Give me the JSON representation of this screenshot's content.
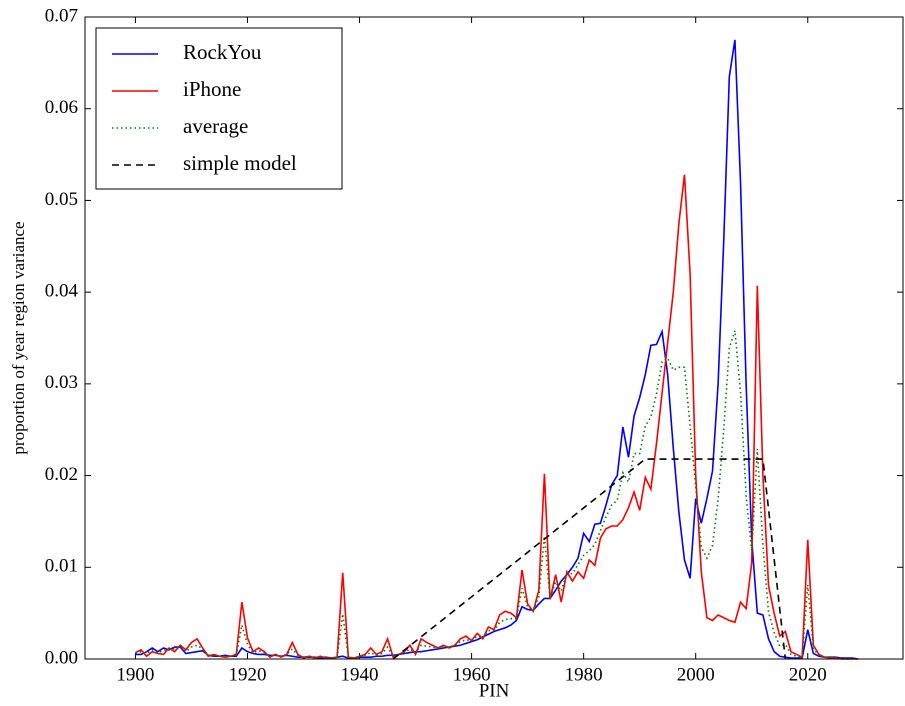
{
  "chart_data": {
    "type": "line",
    "xlabel": "PIN",
    "ylabel": "proportion of year region variance",
    "xlim": [
      1891,
      2037
    ],
    "ylim": [
      0,
      0.07
    ],
    "xticks": [
      1900,
      1920,
      1940,
      1960,
      1980,
      2000,
      2020
    ],
    "yticks": [
      {
        "value": 0,
        "label": "0.00"
      },
      {
        "value": 0.01,
        "label": "0.01"
      },
      {
        "value": 0.02,
        "label": "0.02"
      },
      {
        "value": 0.03,
        "label": "0.03"
      },
      {
        "value": 0.04,
        "label": "0.04"
      },
      {
        "value": 0.05,
        "label": "0.05"
      },
      {
        "value": 0.06,
        "label": "0.06"
      },
      {
        "value": 0.07,
        "label": "0.07"
      }
    ],
    "grid": false,
    "legend": "upper-left",
    "x": [
      1900,
      1901,
      1902,
      1903,
      1904,
      1905,
      1906,
      1907,
      1908,
      1909,
      1910,
      1911,
      1912,
      1913,
      1914,
      1915,
      1916,
      1917,
      1918,
      1919,
      1920,
      1921,
      1922,
      1923,
      1924,
      1925,
      1926,
      1927,
      1928,
      1929,
      1930,
      1931,
      1932,
      1933,
      1934,
      1935,
      1936,
      1937,
      1938,
      1939,
      1940,
      1941,
      1942,
      1943,
      1944,
      1945,
      1946,
      1947,
      1948,
      1949,
      1950,
      1951,
      1952,
      1953,
      1954,
      1955,
      1956,
      1957,
      1958,
      1959,
      1960,
      1961,
      1962,
      1963,
      1964,
      1965,
      1966,
      1967,
      1968,
      1969,
      1970,
      1971,
      1972,
      1973,
      1974,
      1975,
      1976,
      1977,
      1978,
      1979,
      1980,
      1981,
      1982,
      1983,
      1984,
      1985,
      1986,
      1987,
      1988,
      1989,
      1990,
      1991,
      1992,
      1993,
      1994,
      1995,
      1996,
      1997,
      1998,
      1999,
      2000,
      2001,
      2002,
      2003,
      2004,
      2005,
      2006,
      2007,
      2008,
      2009,
      2010,
      2011,
      2012,
      2013,
      2014,
      2015,
      2016,
      2017,
      2018,
      2019,
      2020,
      2021,
      2022,
      2023,
      2024,
      2025,
      2026,
      2027,
      2028,
      2029
    ],
    "series": [
      {
        "name": "RockYou",
        "color": "#0000ff",
        "style": "solid",
        "values": [
          0.0005,
          0.0005,
          0.0008,
          0.0012,
          0.0008,
          0.0012,
          0.001,
          0.0013,
          0.0013,
          0.0006,
          0.0007,
          0.0008,
          0.0009,
          0.0004,
          0.0003,
          0.0003,
          0.0004,
          0.0003,
          0.0003,
          0.0012,
          0.0008,
          0.0006,
          0.0005,
          0.0005,
          0.0004,
          0.0004,
          0.0003,
          0.0004,
          0.0003,
          0.0002,
          0.0002,
          0.0002,
          0.0002,
          0.0001,
          0.0002,
          0.0001,
          0.0002,
          0.0003,
          0.0001,
          0.0001,
          0.0002,
          0.0002,
          0.0002,
          0.0003,
          0.0003,
          0.0004,
          0.0004,
          0.0005,
          0.0006,
          0.0007,
          0.0008,
          0.0008,
          0.0009,
          0.001,
          0.0011,
          0.0012,
          0.0013,
          0.0014,
          0.0015,
          0.0017,
          0.0019,
          0.0021,
          0.0024,
          0.0027,
          0.003,
          0.0032,
          0.0034,
          0.0037,
          0.0042,
          0.0057,
          0.0054,
          0.0053,
          0.006,
          0.0066,
          0.0066,
          0.0075,
          0.0085,
          0.0092,
          0.01,
          0.011,
          0.0137,
          0.0128,
          0.0147,
          0.0148,
          0.0168,
          0.019,
          0.02,
          0.0253,
          0.022,
          0.0265,
          0.0285,
          0.031,
          0.0342,
          0.0343,
          0.0357,
          0.031,
          0.023,
          0.016,
          0.0108,
          0.0088,
          0.0175,
          0.0148,
          0.0175,
          0.0205,
          0.03,
          0.0455,
          0.0635,
          0.0675,
          0.052,
          0.03,
          0.013,
          0.005,
          0.0048,
          0.0022,
          0.0008,
          0.0003,
          0.0002,
          0.0001,
          0.0001,
          0.0001,
          0.0032,
          0.0006,
          0.0003,
          0.0002,
          0.0002,
          0.0002,
          0.0001,
          0.0001,
          0.0001,
          0
        ]
      },
      {
        "name": "iPhone",
        "color": "#ff0000",
        "style": "solid",
        "values": [
          0.0007,
          0.001,
          0.0003,
          0.0008,
          0.0006,
          0.0005,
          0.0012,
          0.0008,
          0.0015,
          0.001,
          0.0018,
          0.0022,
          0.0012,
          0.0003,
          0.0005,
          0.0003,
          0.0002,
          0.0003,
          0.0005,
          0.0062,
          0.0023,
          0.0008,
          0.0012,
          0.0008,
          0.0002,
          0.0005,
          0.0002,
          0.0005,
          0.0018,
          0.0005,
          0.0001,
          0.0003,
          0.0001,
          0.0003,
          0.0001,
          0.0001,
          0.0002,
          0.0094,
          0.0002,
          0.0001,
          0.0003,
          0.0005,
          0.0012,
          0.0005,
          0.0008,
          0.0022,
          0.0002,
          0.0005,
          0.0008,
          0.0015,
          0.0005,
          0.0022,
          0.0018,
          0.0015,
          0.0012,
          0.0015,
          0.0012,
          0.0015,
          0.0022,
          0.0025,
          0.002,
          0.0028,
          0.0022,
          0.0035,
          0.0032,
          0.0048,
          0.0052,
          0.005,
          0.0045,
          0.0097,
          0.006,
          0.0052,
          0.0075,
          0.0202,
          0.0065,
          0.0092,
          0.0062,
          0.0095,
          0.0085,
          0.0095,
          0.0088,
          0.0108,
          0.0102,
          0.0132,
          0.0142,
          0.0145,
          0.0145,
          0.0152,
          0.0165,
          0.0182,
          0.0162,
          0.0198,
          0.0185,
          0.0235,
          0.029,
          0.0345,
          0.04,
          0.0475,
          0.0528,
          0.042,
          0.02,
          0.0095,
          0.0045,
          0.0042,
          0.0048,
          0.0045,
          0.0042,
          0.004,
          0.0062,
          0.0055,
          0.0105,
          0.0407,
          0.02,
          0.008,
          0.005,
          0.0025,
          0.003,
          0.0008,
          0.0005,
          0.0002,
          0.013,
          0.0015,
          0.0005,
          0.0002,
          0.0001,
          0.0001,
          0,
          0,
          0,
          0
        ]
      },
      {
        "name": "average",
        "color": "#008000",
        "style": "dotted",
        "values": [
          0.0006,
          0.0008,
          0.0006,
          0.001,
          0.0007,
          0.0009,
          0.0011,
          0.0011,
          0.0014,
          0.0008,
          0.0013,
          0.0015,
          0.0011,
          0.0004,
          0.0004,
          0.0003,
          0.0003,
          0.0003,
          0.0004,
          0.0037,
          0.0016,
          0.0007,
          0.0009,
          0.0007,
          0.0003,
          0.0005,
          0.0003,
          0.0005,
          0.0011,
          0.0004,
          0.0002,
          0.0003,
          0.0002,
          0.0002,
          0.0002,
          0.0001,
          0.0002,
          0.0049,
          0.0002,
          0.0001,
          0.0003,
          0.0004,
          0.0007,
          0.0004,
          0.0006,
          0.0013,
          0.0003,
          0.0005,
          0.0007,
          0.0011,
          0.0007,
          0.0015,
          0.0014,
          0.0013,
          0.0012,
          0.0014,
          0.0013,
          0.0015,
          0.0019,
          0.0021,
          0.002,
          0.0025,
          0.0023,
          0.0031,
          0.0031,
          0.004,
          0.0043,
          0.0044,
          0.0044,
          0.0077,
          0.0057,
          0.0053,
          0.0068,
          0.0134,
          0.0066,
          0.0084,
          0.0074,
          0.0094,
          0.0093,
          0.0103,
          0.0113,
          0.0118,
          0.0125,
          0.014,
          0.0155,
          0.0168,
          0.0173,
          0.0203,
          0.0193,
          0.0224,
          0.0224,
          0.0254,
          0.0264,
          0.0289,
          0.0324,
          0.0328,
          0.0315,
          0.0318,
          0.0318,
          0.0254,
          0.0188,
          0.0122,
          0.011,
          0.0124,
          0.0174,
          0.025,
          0.0339,
          0.0358,
          0.0291,
          0.0178,
          0.0118,
          0.0229,
          0.0124,
          0.0051,
          0.0029,
          0.0014,
          0.0016,
          0.0005,
          0.0003,
          0.0002,
          0.0081,
          0.0011,
          0.0004,
          0.0002,
          0.0002,
          0.0002,
          0.0001,
          0.0001,
          0.0001,
          0
        ]
      },
      {
        "name": "simple model",
        "color": "#000000",
        "style": "dashed",
        "x": [
          1946,
          1991,
          2012,
          2016
        ],
        "values": [
          0,
          0.0218,
          0.0218,
          0
        ]
      }
    ]
  }
}
